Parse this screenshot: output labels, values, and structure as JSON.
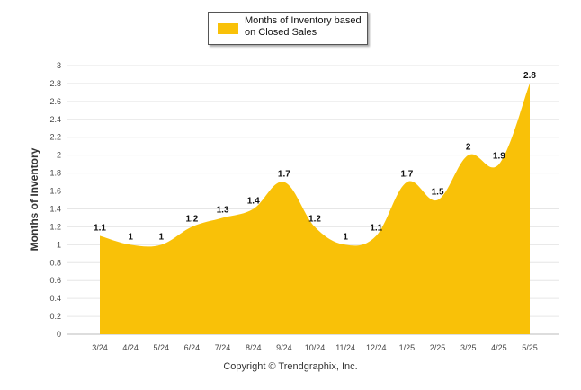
{
  "chart_data": {
    "type": "area",
    "ylabel": "Months of Inventory",
    "ylim": [
      0,
      3
    ],
    "ystep": 0.2,
    "yticks": [
      "0",
      "0.2",
      "0.4",
      "0.6",
      "0.8",
      "1",
      "1.2",
      "1.4",
      "1.6",
      "1.8",
      "2",
      "2.2",
      "2.4",
      "2.6",
      "2.8",
      "3"
    ],
    "grid": true,
    "legend_position": "top-center",
    "categories": [
      "3/24",
      "4/24",
      "5/24",
      "6/24",
      "7/24",
      "8/24",
      "9/24",
      "10/24",
      "11/24",
      "12/24",
      "1/25",
      "2/25",
      "3/25",
      "4/25",
      "5/25"
    ],
    "series": [
      {
        "name": "Months of Inventory based on Closed Sales",
        "color": "#F9C108",
        "values": [
          1.1,
          1,
          1,
          1.2,
          1.3,
          1.4,
          1.7,
          1.2,
          1,
          1.1,
          1.7,
          1.5,
          2,
          1.9,
          2.8
        ],
        "labels": [
          "1.1",
          "1",
          "1",
          "1.2",
          "1.3",
          "1.4",
          "1.7",
          "1.2",
          "1",
          "1.1",
          "1.7",
          "1.5",
          "2",
          "1.9",
          "2.8"
        ]
      }
    ]
  },
  "legend": {
    "label": "Months of Inventory based on Closed Sales",
    "color": "#F9C108"
  },
  "footer": {
    "copyright": "Copyright © Trendgraphix, Inc."
  }
}
